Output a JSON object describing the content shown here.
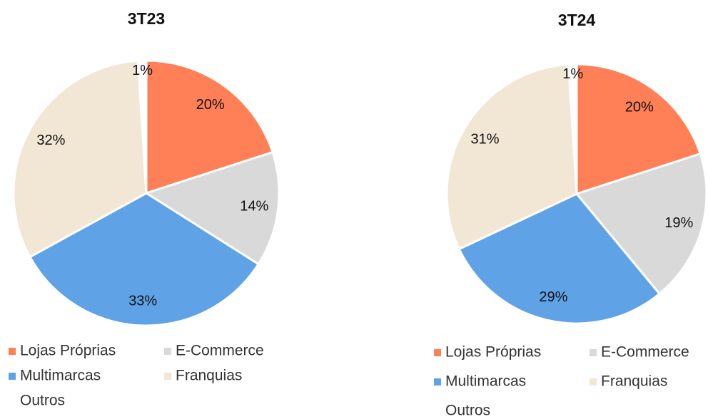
{
  "chart_data": [
    {
      "type": "pie",
      "title": "3T23",
      "categories": [
        "Lojas Próprias",
        "E-Commerce",
        "Multimarcas",
        "Franquias",
        "Outros"
      ],
      "values": [
        20,
        14,
        33,
        32,
        1
      ],
      "value_labels": [
        "20%",
        "14%",
        "33%",
        "32%",
        "1%"
      ],
      "colors": [
        "#ff7f57",
        "#d9d9d9",
        "#5fa3e6",
        "#f2e6d4",
        "#ffffff"
      ]
    },
    {
      "type": "pie",
      "title": "3T24",
      "categories": [
        "Lojas Próprias",
        "E-Commerce",
        "Multimarcas",
        "Franquias",
        "Outros"
      ],
      "values": [
        20,
        19,
        29,
        31,
        1
      ],
      "value_labels": [
        "20%",
        "19%",
        "29%",
        "31%",
        "1%"
      ],
      "colors": [
        "#ff7f57",
        "#d9d9d9",
        "#5fa3e6",
        "#f2e6d4",
        "#ffffff"
      ]
    }
  ]
}
